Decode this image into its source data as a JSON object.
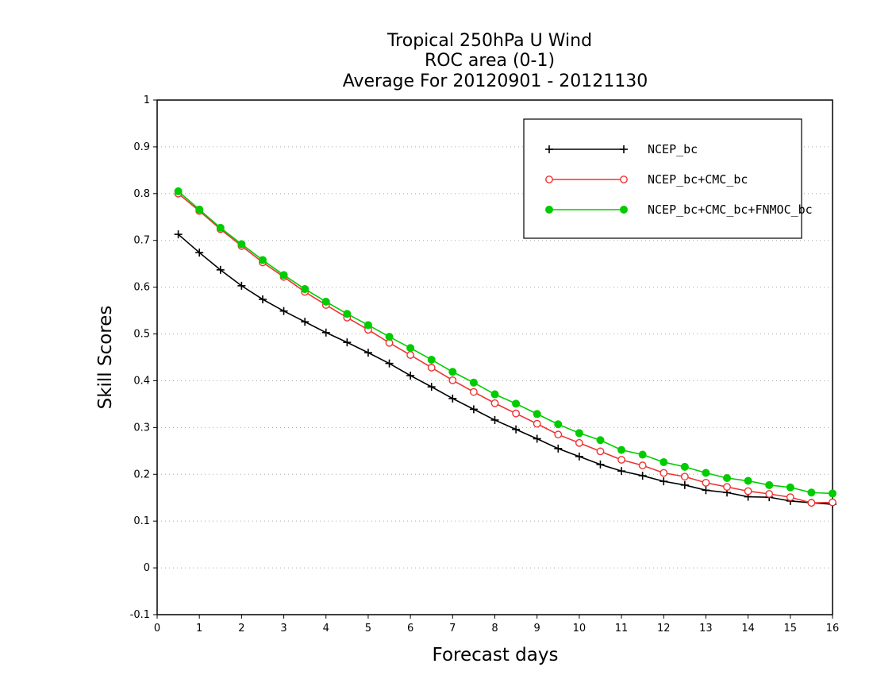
{
  "chart_data": {
    "type": "line",
    "title_lines": [
      "Tropical 250hPa U Wind",
      "ROC area (0-1)",
      "Average For 20120901 - 20121130"
    ],
    "xlabel": "Forecast days",
    "ylabel": "Skill Scores",
    "xlim": [
      0,
      16
    ],
    "ylim": [
      -0.1,
      1
    ],
    "x_ticks": [
      0,
      1,
      2,
      3,
      4,
      5,
      6,
      7,
      8,
      9,
      10,
      11,
      12,
      13,
      14,
      15,
      16
    ],
    "y_ticks": [
      -0.1,
      0,
      0.1,
      0.2,
      0.3,
      0.4,
      0.5,
      0.6,
      0.7,
      0.8,
      0.9,
      1
    ],
    "y_tick_labels": [
      "-0.1",
      "0",
      "0.1",
      "0.2",
      "0.3",
      "0.4",
      "0.5",
      "0.6",
      "0.7",
      "0.8",
      "0.9",
      "1"
    ],
    "grid": "horizontal dotted",
    "legend_position": "top-right",
    "x": [
      0.5,
      1,
      1.5,
      2,
      2.5,
      3,
      3.5,
      4,
      4.5,
      5,
      5.5,
      6,
      6.5,
      7,
      7.5,
      8,
      8.5,
      9,
      9.5,
      10,
      10.5,
      11,
      11.5,
      12,
      12.5,
      13,
      13.5,
      14,
      14.5,
      15,
      15.5,
      16
    ],
    "series": [
      {
        "name": "NCEP_bc",
        "color": "#000000",
        "marker": "plus",
        "values": [
          0.713,
          0.674,
          0.637,
          0.603,
          0.574,
          0.549,
          0.526,
          0.503,
          0.482,
          0.46,
          0.437,
          0.411,
          0.387,
          0.362,
          0.339,
          0.316,
          0.296,
          0.276,
          0.255,
          0.238,
          0.221,
          0.207,
          0.197,
          0.185,
          0.177,
          0.166,
          0.161,
          0.152,
          0.151,
          0.143,
          0.139,
          0.136
        ]
      },
      {
        "name": "NCEP_bc+CMC_bc",
        "color": "#ee3333",
        "marker": "open-circle",
        "values": [
          0.8,
          0.763,
          0.724,
          0.688,
          0.653,
          0.622,
          0.59,
          0.562,
          0.535,
          0.509,
          0.481,
          0.455,
          0.428,
          0.401,
          0.376,
          0.352,
          0.33,
          0.308,
          0.285,
          0.267,
          0.249,
          0.231,
          0.219,
          0.203,
          0.195,
          0.182,
          0.173,
          0.164,
          0.158,
          0.151,
          0.139,
          0.14
        ]
      },
      {
        "name": "NCEP_bc+CMC_bc+FNMOC_bc",
        "color": "#00cc00",
        "marker": "filled-circle",
        "values": [
          0.805,
          0.766,
          0.727,
          0.692,
          0.658,
          0.626,
          0.596,
          0.569,
          0.543,
          0.519,
          0.494,
          0.47,
          0.445,
          0.419,
          0.396,
          0.371,
          0.351,
          0.329,
          0.307,
          0.288,
          0.273,
          0.252,
          0.242,
          0.226,
          0.216,
          0.203,
          0.192,
          0.186,
          0.177,
          0.172,
          0.161,
          0.159
        ]
      }
    ]
  }
}
